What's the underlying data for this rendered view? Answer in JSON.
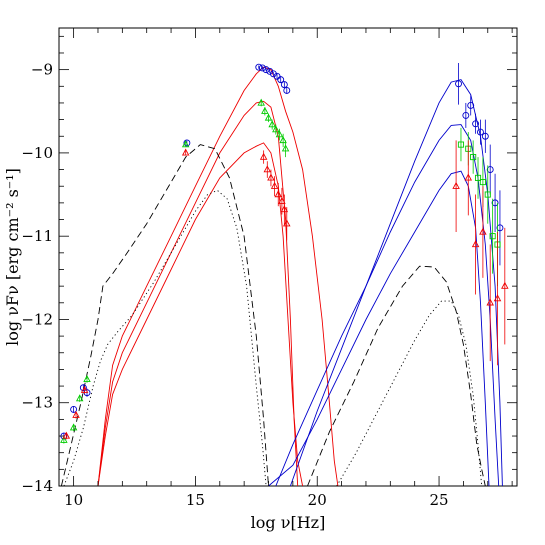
{
  "chart_data": {
    "type": "scatter",
    "title": "",
    "xlabel": "log ν[Hz]",
    "ylabel": "log νFν [erg cm⁻² s⁻¹]",
    "xlim": [
      9.4,
      28.2
    ],
    "ylim": [
      -14,
      -8.5
    ],
    "x_ticks": [
      10,
      15,
      20,
      25
    ],
    "y_ticks": [
      -14,
      -13,
      -12,
      -11,
      -10,
      -9
    ],
    "grid": false,
    "legend": "none",
    "colors": {
      "blue": "#0000cc",
      "green": "#00cc00",
      "red": "#ee0000",
      "black": "#000000"
    },
    "curves": [
      {
        "color": "red",
        "style": "solid",
        "x": [
          11.0,
          11.3,
          11.6,
          12.0,
          13.0,
          14.0,
          15.0,
          16.0,
          17.0,
          17.5,
          17.8,
          18.1,
          18.4,
          18.7,
          19.0,
          19.4,
          19.8,
          20.2,
          20.5,
          20.7,
          20.85
        ],
        "y": [
          -14,
          -13.2,
          -12.55,
          -12.2,
          -11.6,
          -11.0,
          -10.4,
          -9.8,
          -9.25,
          -9.05,
          -8.97,
          -9.0,
          -9.2,
          -9.5,
          -9.75,
          -10.2,
          -11.0,
          -12.0,
          -13.0,
          -13.7,
          -14
        ]
      },
      {
        "color": "red",
        "style": "solid",
        "x": [
          11.0,
          11.3,
          11.6,
          12.0,
          13.0,
          14.0,
          15.0,
          16.0,
          17.0,
          17.5,
          17.8,
          18.1,
          18.4,
          18.7,
          18.9,
          19.05,
          19.2
        ],
        "y": [
          -14,
          -13.3,
          -12.75,
          -12.4,
          -11.8,
          -11.2,
          -10.6,
          -10.0,
          -9.55,
          -9.4,
          -9.38,
          -9.45,
          -9.8,
          -10.8,
          -12.0,
          -13.2,
          -14
        ]
      },
      {
        "color": "red",
        "style": "solid",
        "x": [
          11.0,
          11.3,
          11.6,
          12.0,
          13.0,
          14.0,
          15.0,
          16.0,
          17.0,
          17.5,
          17.8,
          18.1,
          18.4,
          18.6,
          18.8,
          19.0,
          19.2,
          19.4
        ],
        "y": [
          -14,
          -13.4,
          -12.9,
          -12.6,
          -12.0,
          -11.4,
          -10.8,
          -10.3,
          -10.0,
          -9.92,
          -9.88,
          -10.0,
          -10.4,
          -11.0,
          -12.0,
          -13.0,
          -13.7,
          -14
        ]
      },
      {
        "color": "blue",
        "style": "solid",
        "x": [
          18.9,
          20.0,
          21.0,
          22.0,
          23.0,
          24.0,
          25.0,
          25.5,
          25.9,
          26.3,
          26.7,
          27.0,
          27.3,
          27.5,
          27.6
        ],
        "y": [
          -14,
          -13.1,
          -12.35,
          -11.6,
          -10.85,
          -10.1,
          -9.4,
          -9.15,
          -9.12,
          -9.3,
          -9.8,
          -10.5,
          -11.6,
          -13.0,
          -14
        ]
      },
      {
        "color": "blue",
        "style": "solid",
        "x": [
          18.3,
          19.0,
          20.0,
          21.0,
          22.0,
          23.0,
          24.0,
          25.0,
          25.5,
          25.9,
          26.3,
          26.6,
          26.9,
          27.1,
          27.3,
          27.45
        ],
        "y": [
          -14,
          -13.5,
          -12.85,
          -12.2,
          -11.6,
          -10.95,
          -10.35,
          -9.85,
          -9.67,
          -9.66,
          -9.85,
          -10.3,
          -11.1,
          -12.0,
          -13.2,
          -14
        ]
      },
      {
        "color": "blue",
        "style": "solid",
        "x": [
          18.0,
          19.0,
          20.0,
          21.0,
          22.0,
          23.0,
          24.0,
          25.0,
          25.5,
          25.9,
          26.2,
          26.5,
          26.7,
          26.9,
          27.05
        ],
        "y": [
          -14,
          -13.75,
          -13.2,
          -12.6,
          -12.0,
          -11.45,
          -10.95,
          -10.45,
          -10.25,
          -10.22,
          -10.4,
          -10.9,
          -11.8,
          -13.0,
          -14
        ]
      },
      {
        "color": "black",
        "style": "dashed",
        "x": [
          9.5,
          9.9,
          10.3,
          10.7,
          11.0,
          11.2,
          11.6,
          12.2,
          13.0,
          14.0,
          14.6,
          15.2,
          15.8,
          16.4,
          17.0,
          17.5,
          17.8,
          18.0
        ],
        "y": [
          -14,
          -13.5,
          -13.0,
          -12.45,
          -12.0,
          -11.6,
          -11.45,
          -11.2,
          -10.85,
          -10.35,
          -10.05,
          -9.9,
          -9.95,
          -10.3,
          -11.0,
          -12.2,
          -13.2,
          -14
        ]
      },
      {
        "color": "black",
        "style": "dotted",
        "x": [
          9.6,
          10.0,
          10.4,
          10.8,
          11.1,
          11.4,
          11.8,
          12.4,
          13.3,
          14.3,
          15.0,
          15.5,
          15.9,
          16.3,
          16.7,
          17.1,
          17.5,
          17.75,
          17.9
        ],
        "y": [
          -14,
          -13.7,
          -13.3,
          -12.8,
          -12.5,
          -12.3,
          -12.15,
          -11.95,
          -11.55,
          -11.05,
          -10.7,
          -10.5,
          -10.45,
          -10.55,
          -10.9,
          -11.6,
          -12.8,
          -13.5,
          -14
        ]
      },
      {
        "color": "black",
        "style": "dashed",
        "x": [
          19.6,
          20.5,
          21.5,
          22.5,
          23.5,
          24.2,
          24.8,
          25.3,
          25.7,
          26.0,
          26.3,
          26.55,
          26.75,
          26.9
        ],
        "y": [
          -14,
          -13.35,
          -12.75,
          -12.1,
          -11.6,
          -11.36,
          -11.37,
          -11.55,
          -11.9,
          -12.3,
          -12.9,
          -13.5,
          -13.8,
          -14
        ]
      },
      {
        "color": "black",
        "style": "dotted",
        "x": [
          20.8,
          21.6,
          22.4,
          23.2,
          24.0,
          24.6,
          25.1,
          25.5,
          25.8,
          26.1,
          26.4,
          26.6,
          26.75
        ],
        "y": [
          -14,
          -13.6,
          -13.15,
          -12.7,
          -12.25,
          -11.95,
          -11.78,
          -11.78,
          -11.95,
          -12.3,
          -12.9,
          -13.5,
          -14
        ]
      }
    ],
    "points": [
      {
        "color": "blue",
        "marker": "circle",
        "x": [
          17.6,
          17.75,
          17.9,
          18.05,
          18.2,
          18.35,
          18.5,
          18.65,
          18.75
        ],
        "y": [
          -8.97,
          -8.98,
          -9.0,
          -9.02,
          -9.05,
          -9.08,
          -9.12,
          -9.18,
          -9.25
        ],
        "yerr": [
          0.02,
          0.02,
          0.02,
          0.02,
          0.02,
          0.03,
          0.03,
          0.03,
          0.04
        ]
      },
      {
        "color": "green",
        "marker": "triangle",
        "x": [
          17.7,
          17.85,
          18.0,
          18.15,
          18.3,
          18.45,
          18.6,
          18.7
        ],
        "y": [
          -9.4,
          -9.5,
          -9.58,
          -9.66,
          -9.72,
          -9.78,
          -9.85,
          -9.95
        ],
        "yerr": [
          0.04,
          0.05,
          0.05,
          0.06,
          0.06,
          0.07,
          0.08,
          0.1
        ]
      },
      {
        "color": "red",
        "marker": "triangle",
        "x": [
          17.8,
          17.95,
          18.1,
          18.25,
          18.4,
          18.55,
          18.65,
          18.75
        ],
        "y": [
          -10.05,
          -10.2,
          -10.3,
          -10.4,
          -10.5,
          -10.58,
          -10.68,
          -10.85
        ],
        "yerr": [
          0.08,
          0.1,
          0.1,
          0.12,
          0.14,
          0.16,
          0.18,
          0.2
        ]
      },
      {
        "color": "blue",
        "marker": "circle",
        "x": [
          9.6,
          10.0,
          10.4,
          10.55,
          14.65
        ],
        "y": [
          -13.4,
          -13.08,
          -12.82,
          -12.88,
          -9.88
        ],
        "yerr": [
          0.04,
          0.04,
          0.04,
          0.05,
          0.03
        ]
      },
      {
        "color": "green",
        "marker": "triangle",
        "x": [
          9.6,
          10.0,
          10.25,
          10.55,
          14.6
        ],
        "y": [
          -13.45,
          -13.3,
          -12.95,
          -12.72,
          -9.9
        ],
        "yerr": [
          0.04,
          0.04,
          0.04,
          0.04,
          0.03
        ]
      },
      {
        "color": "red",
        "marker": "triangle",
        "x": [
          9.7,
          10.1,
          10.45,
          14.6
        ],
        "y": [
          -13.4,
          -13.15,
          -12.85,
          -10.0
        ],
        "yerr": [
          0.04,
          0.04,
          0.04,
          0.03
        ]
      },
      {
        "color": "blue",
        "marker": "circle",
        "x": [
          25.8,
          26.1,
          26.3,
          26.5,
          26.7,
          26.9,
          27.1,
          27.3,
          27.5
        ],
        "y": [
          -9.17,
          -9.55,
          -9.43,
          -9.65,
          -9.75,
          -9.8,
          -10.2,
          -10.6,
          -10.9
        ],
        "yerr": [
          0.25,
          0.15,
          0.12,
          0.12,
          0.15,
          0.2,
          0.3,
          0.35,
          0.45
        ]
      },
      {
        "color": "green",
        "marker": "square",
        "x": [
          25.9,
          26.2,
          26.4,
          26.6,
          26.8,
          27.0,
          27.2,
          27.4
        ],
        "y": [
          -9.9,
          -9.95,
          -10.05,
          -10.3,
          -10.35,
          -10.5,
          -11.0,
          -11.1
        ],
        "yerr": [
          0.2,
          0.2,
          0.2,
          0.25,
          0.3,
          0.35,
          0.45,
          0.5
        ]
      },
      {
        "color": "red",
        "marker": "triangle",
        "x": [
          25.7,
          26.2,
          26.5,
          26.8,
          27.1,
          27.4,
          27.7
        ],
        "y": [
          -10.4,
          -10.3,
          -11.1,
          -10.95,
          -11.8,
          -11.75,
          -11.6
        ],
        "yerr": [
          0.55,
          0.45,
          0.6,
          0.55,
          0.7,
          0.8,
          0.7
        ]
      }
    ]
  }
}
